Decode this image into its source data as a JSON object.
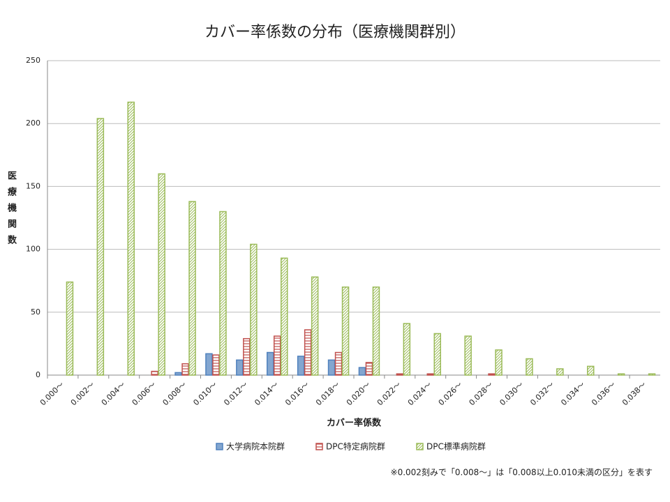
{
  "chart_data": {
    "type": "bar",
    "title": "カバー率係数の分布（医療機関群別）",
    "x_label": "カバー率係数",
    "y_label": "医療機関数",
    "note": "※0.002刻みで「0.008～」は「0.008以上0.010未満の区分」を表す",
    "categories": [
      "0.000〜",
      "0.002〜",
      "0.004〜",
      "0.006〜",
      "0.008〜",
      "0.010〜",
      "0.012〜",
      "0.014〜",
      "0.016〜",
      "0.018〜",
      "0.020〜",
      "0.022〜",
      "0.024〜",
      "0.026〜",
      "0.028〜",
      "0.030〜",
      "0.032〜",
      "0.034〜",
      "0.036〜",
      "0.038〜"
    ],
    "series": [
      {
        "name": "大学病院本院群",
        "color": "#4f81bd",
        "values": [
          0,
          0,
          0,
          0,
          2,
          17,
          12,
          18,
          15,
          12,
          6,
          0,
          0,
          0,
          0,
          0,
          0,
          0,
          0,
          0
        ]
      },
      {
        "name": "DPC特定病院群",
        "color": "#c0504d",
        "values": [
          0,
          0,
          0,
          3,
          9,
          16,
          29,
          31,
          36,
          18,
          10,
          1,
          1,
          0,
          1,
          0,
          0,
          0,
          0,
          0
        ]
      },
      {
        "name": "DPC標準病院群",
        "color": "#9bbb59",
        "values": [
          74,
          204,
          217,
          160,
          138,
          130,
          104,
          93,
          78,
          70,
          70,
          41,
          33,
          31,
          20,
          13,
          5,
          7,
          1,
          1
        ]
      }
    ],
    "ylim": [
      0,
      250
    ],
    "yticks": [
      0,
      50,
      100,
      150,
      200,
      250
    ],
    "grid": true,
    "legend": "bottom"
  }
}
